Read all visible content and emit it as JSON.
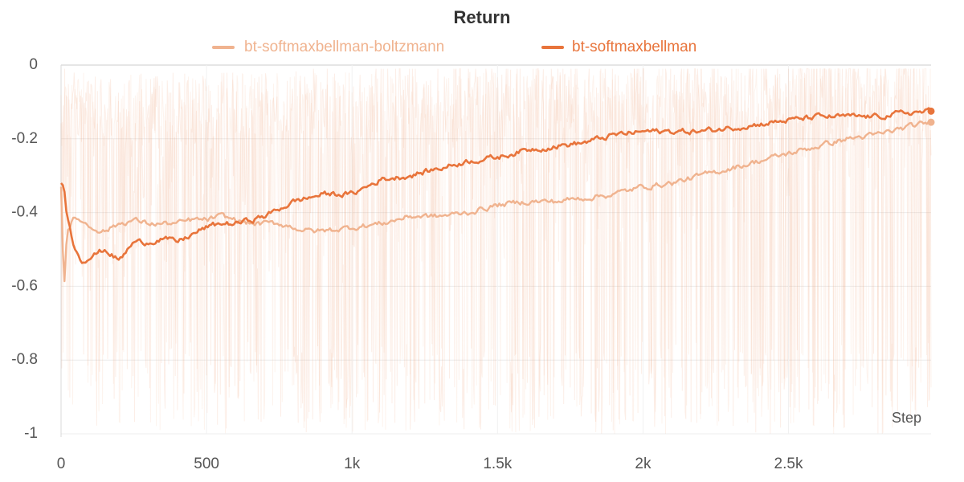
{
  "chart_data": {
    "type": "line",
    "title": "Return",
    "xlabel": "Step",
    "ylabel": "",
    "xlim": [
      0,
      2990
    ],
    "ylim": [
      -1,
      0
    ],
    "x_ticks": [
      0,
      500,
      1000,
      1500,
      2000,
      2500
    ],
    "x_tick_labels": [
      "0",
      "500",
      "1k",
      "1.5k",
      "2k",
      "2.5k"
    ],
    "y_ticks": [
      0,
      -0.2,
      -0.4,
      -0.6,
      -0.8,
      -1
    ],
    "y_tick_labels": [
      "0",
      "-0.2",
      "-0.4",
      "-0.6",
      "-0.8",
      "-1"
    ],
    "grid": true,
    "legend_position": "top-center",
    "series": [
      {
        "name": "bt-softmaxbellman-boltzmann",
        "color": "#f0b38f",
        "x": [
          0,
          10,
          20,
          40,
          70,
          100,
          150,
          200,
          250,
          300,
          350,
          400,
          450,
          500,
          550,
          600,
          650,
          700,
          750,
          800,
          850,
          900,
          1000,
          1100,
          1200,
          1300,
          1400,
          1500,
          1600,
          1700,
          1800,
          1900,
          2000,
          2100,
          2200,
          2300,
          2400,
          2500,
          2600,
          2700,
          2800,
          2900,
          2990
        ],
        "values": [
          -0.33,
          -0.62,
          -0.45,
          -0.42,
          -0.42,
          -0.44,
          -0.45,
          -0.43,
          -0.42,
          -0.43,
          -0.43,
          -0.43,
          -0.42,
          -0.42,
          -0.41,
          -0.42,
          -0.43,
          -0.43,
          -0.43,
          -0.44,
          -0.45,
          -0.45,
          -0.44,
          -0.43,
          -0.41,
          -0.41,
          -0.4,
          -0.38,
          -0.37,
          -0.37,
          -0.36,
          -0.35,
          -0.33,
          -0.32,
          -0.3,
          -0.28,
          -0.26,
          -0.24,
          -0.22,
          -0.2,
          -0.19,
          -0.17,
          -0.155
        ]
      },
      {
        "name": "bt-softmaxbellman",
        "color": "#e8743b",
        "x": [
          0,
          10,
          20,
          40,
          70,
          100,
          150,
          200,
          250,
          300,
          350,
          400,
          450,
          500,
          550,
          600,
          650,
          700,
          750,
          800,
          850,
          900,
          1000,
          1100,
          1200,
          1300,
          1400,
          1500,
          1600,
          1700,
          1800,
          1900,
          2000,
          2100,
          2200,
          2300,
          2400,
          2500,
          2600,
          2700,
          2800,
          2900,
          2990
        ],
        "values": [
          -0.32,
          -0.33,
          -0.4,
          -0.48,
          -0.53,
          -0.52,
          -0.5,
          -0.53,
          -0.48,
          -0.48,
          -0.47,
          -0.48,
          -0.46,
          -0.44,
          -0.43,
          -0.43,
          -0.42,
          -0.41,
          -0.39,
          -0.37,
          -0.36,
          -0.35,
          -0.35,
          -0.31,
          -0.3,
          -0.28,
          -0.26,
          -0.25,
          -0.23,
          -0.22,
          -0.21,
          -0.19,
          -0.18,
          -0.18,
          -0.18,
          -0.17,
          -0.16,
          -0.15,
          -0.14,
          -0.14,
          -0.14,
          -0.13,
          -0.125
        ]
      }
    ]
  }
}
